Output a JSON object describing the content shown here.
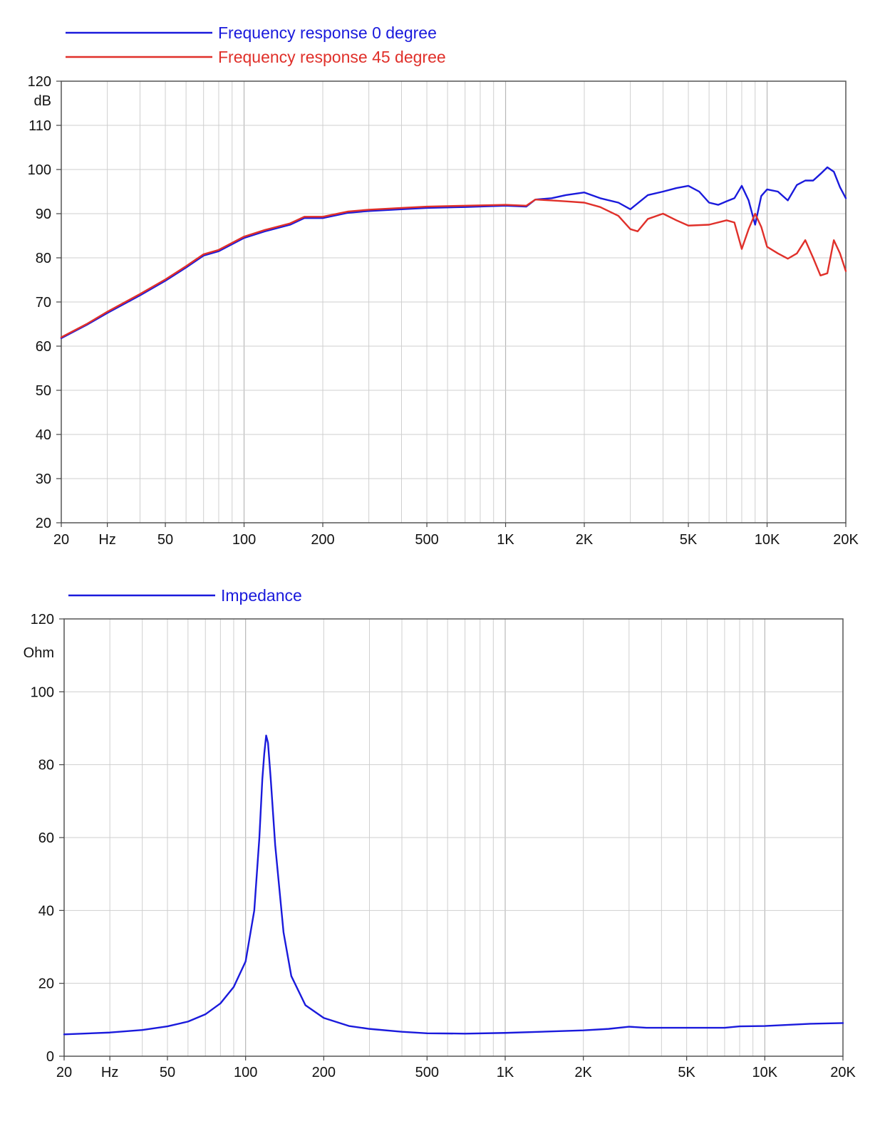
{
  "chart_data": [
    {
      "type": "line",
      "x_scale": "log",
      "xlim": [
        20,
        20000
      ],
      "ylim": [
        20,
        120
      ],
      "ylabel": "dB",
      "xlabel": "Hz",
      "grid": true,
      "legend": "top-left",
      "x_tick_labels": [
        "20",
        "Hz",
        "50",
        "100",
        "200",
        "500",
        "1K",
        "2K",
        "5K",
        "10K",
        "20K"
      ],
      "y_tick_labels": [
        "120",
        "110",
        "100",
        "90",
        "80",
        "70",
        "60",
        "50",
        "40",
        "30",
        "20"
      ],
      "series": [
        {
          "name": "Frequency response 0 degree",
          "color": "#1a1adc",
          "x": [
            20,
            25,
            30,
            40,
            50,
            60,
            70,
            80,
            100,
            120,
            150,
            170,
            200,
            250,
            300,
            400,
            500,
            700,
            1000,
            1200,
            1300,
            1500,
            1700,
            2000,
            2300,
            2700,
            3000,
            3500,
            4000,
            4500,
            5000,
            5500,
            6000,
            6500,
            7000,
            7500,
            8000,
            8500,
            9000,
            9500,
            10000,
            11000,
            12000,
            13000,
            14000,
            15000,
            16000,
            17000,
            18000,
            19000,
            20000
          ],
          "y": [
            61.8,
            64.8,
            67.5,
            71.5,
            74.8,
            77.8,
            80.5,
            81.5,
            84.5,
            86,
            87.5,
            89,
            89,
            90.2,
            90.6,
            91,
            91.3,
            91.5,
            91.8,
            91.6,
            93.2,
            93.5,
            94.2,
            94.8,
            93.5,
            92.5,
            91,
            94.2,
            95,
            95.8,
            96.3,
            95,
            92.5,
            92,
            92.8,
            93.5,
            96.3,
            93,
            87.5,
            94,
            95.5,
            95,
            93,
            96.5,
            97.5,
            97.5,
            99,
            100.5,
            99.5,
            96,
            93.5
          ]
        },
        {
          "name": "Frequency response 45 degree",
          "color": "#e0302a",
          "x": [
            20,
            25,
            30,
            40,
            50,
            60,
            70,
            80,
            100,
            120,
            150,
            170,
            200,
            250,
            300,
            400,
            500,
            700,
            1000,
            1200,
            1300,
            1500,
            1700,
            2000,
            2300,
            2700,
            3000,
            3200,
            3500,
            4000,
            4500,
            5000,
            6000,
            7000,
            7500,
            8000,
            8500,
            9000,
            9500,
            10000,
            11000,
            12000,
            13000,
            14000,
            15000,
            16000,
            17000,
            18000,
            19000,
            20000
          ],
          "y": [
            62,
            65,
            67.8,
            71.8,
            75.1,
            78.1,
            80.8,
            81.8,
            84.8,
            86.3,
            87.8,
            89.3,
            89.3,
            90.5,
            90.9,
            91.3,
            91.6,
            91.8,
            92,
            91.8,
            93.2,
            93,
            92.8,
            92.5,
            91.5,
            89.5,
            86.5,
            86,
            88.8,
            90,
            88.5,
            87.3,
            87.5,
            88.5,
            88,
            82,
            86.5,
            90,
            87,
            82.5,
            81,
            79.8,
            81,
            84,
            80,
            76,
            76.5,
            84,
            81,
            77
          ]
        }
      ]
    },
    {
      "type": "line",
      "x_scale": "log",
      "xlim": [
        20,
        20000
      ],
      "ylim": [
        0,
        120
      ],
      "ylabel": "Ohm",
      "xlabel": "Hz",
      "grid": true,
      "legend": "top-left",
      "x_tick_labels": [
        "20",
        "Hz",
        "50",
        "100",
        "200",
        "500",
        "1K",
        "2K",
        "5K",
        "10K",
        "20K"
      ],
      "y_tick_labels": [
        "120",
        "100",
        "80",
        "60",
        "40",
        "20",
        "0"
      ],
      "series": [
        {
          "name": "Impedance",
          "color": "#1a1adc",
          "x": [
            20,
            30,
            40,
            50,
            60,
            70,
            80,
            90,
            100,
            108,
            113,
            116,
            118,
            120,
            122,
            125,
            130,
            140,
            150,
            170,
            200,
            250,
            300,
            400,
            500,
            700,
            1000,
            1500,
            2000,
            2500,
            3000,
            3500,
            5000,
            7000,
            8000,
            10000,
            15000,
            20000
          ],
          "y": [
            6,
            6.5,
            7.2,
            8.2,
            9.5,
            11.5,
            14.5,
            19,
            26,
            40,
            60,
            76,
            83,
            88,
            86,
            76,
            58,
            34,
            22,
            14,
            10.5,
            8.3,
            7.5,
            6.7,
            6.3,
            6.2,
            6.4,
            6.8,
            7.1,
            7.5,
            8.1,
            7.8,
            7.8,
            7.8,
            8.2,
            8.3,
            8.9,
            9.1
          ]
        }
      ]
    }
  ]
}
